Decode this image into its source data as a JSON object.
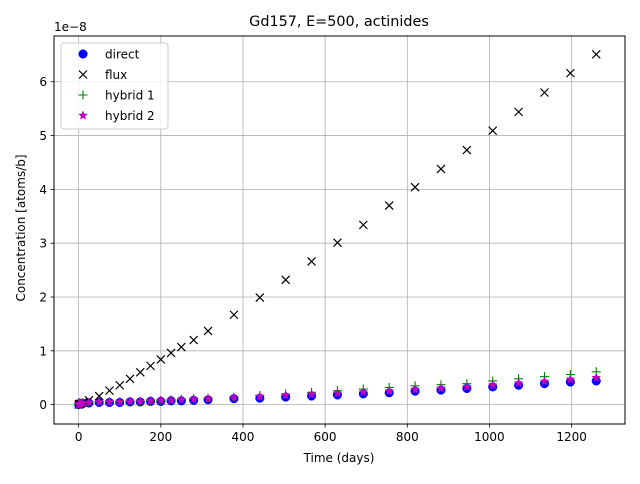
{
  "chart_data": {
    "type": "scatter",
    "title": "Gd157, E=500, actinides",
    "xlabel": "Time (days)",
    "ylabel": "Concentration [atoms/b]",
    "y_offset_text": "1e−8",
    "xlim": [
      -60,
      1330
    ],
    "ylim": [
      -0.36,
      6.85
    ],
    "y_multiplier": 1e-08,
    "grid": true,
    "legend_position": "top-left",
    "x_ticks": [
      0,
      200,
      400,
      600,
      800,
      1000,
      1200
    ],
    "y_ticks": [
      0,
      1,
      2,
      3,
      4,
      5,
      6
    ],
    "x": [
      0,
      2,
      5,
      10,
      25,
      50,
      75,
      100,
      125,
      150,
      175,
      200,
      225,
      250,
      280,
      315,
      378,
      441,
      504,
      567,
      630,
      693,
      756,
      819,
      882,
      945,
      1008,
      1071,
      1134,
      1197,
      1260
    ],
    "series": [
      {
        "name": "direct",
        "marker": "circle",
        "color": "#0000ff",
        "values": [
          0.0,
          0.01,
          0.02,
          0.02,
          0.03,
          0.04,
          0.04,
          0.04,
          0.05,
          0.05,
          0.06,
          0.06,
          0.07,
          0.07,
          0.08,
          0.09,
          0.11,
          0.12,
          0.14,
          0.16,
          0.18,
          0.2,
          0.22,
          0.25,
          0.27,
          0.3,
          0.33,
          0.36,
          0.39,
          0.42,
          0.44
        ]
      },
      {
        "name": "flux",
        "marker": "x",
        "color": "#000000",
        "values": [
          0.0,
          0.01,
          0.02,
          0.04,
          0.08,
          0.16,
          0.26,
          0.36,
          0.48,
          0.6,
          0.72,
          0.84,
          0.96,
          1.07,
          1.2,
          1.37,
          1.67,
          1.99,
          2.32,
          2.66,
          3.01,
          3.34,
          3.7,
          4.04,
          4.38,
          4.73,
          5.09,
          5.44,
          5.8,
          6.16,
          6.51
        ]
      },
      {
        "name": "hybrid 1",
        "marker": "plus",
        "color": "#008000",
        "values": [
          0.0,
          0.02,
          0.03,
          0.04,
          0.04,
          0.05,
          0.05,
          0.05,
          0.06,
          0.06,
          0.07,
          0.08,
          0.09,
          0.1,
          0.11,
          0.12,
          0.14,
          0.17,
          0.2,
          0.23,
          0.26,
          0.29,
          0.32,
          0.35,
          0.37,
          0.39,
          0.44,
          0.48,
          0.52,
          0.56,
          0.61
        ]
      },
      {
        "name": "hybrid 2",
        "marker": "star",
        "color": "#c000c0",
        "values": [
          0.0,
          0.01,
          0.02,
          0.03,
          0.04,
          0.05,
          0.05,
          0.05,
          0.06,
          0.06,
          0.07,
          0.08,
          0.08,
          0.09,
          0.1,
          0.11,
          0.13,
          0.15,
          0.17,
          0.19,
          0.21,
          0.23,
          0.25,
          0.28,
          0.3,
          0.33,
          0.36,
          0.4,
          0.43,
          0.47,
          0.5
        ]
      }
    ]
  }
}
